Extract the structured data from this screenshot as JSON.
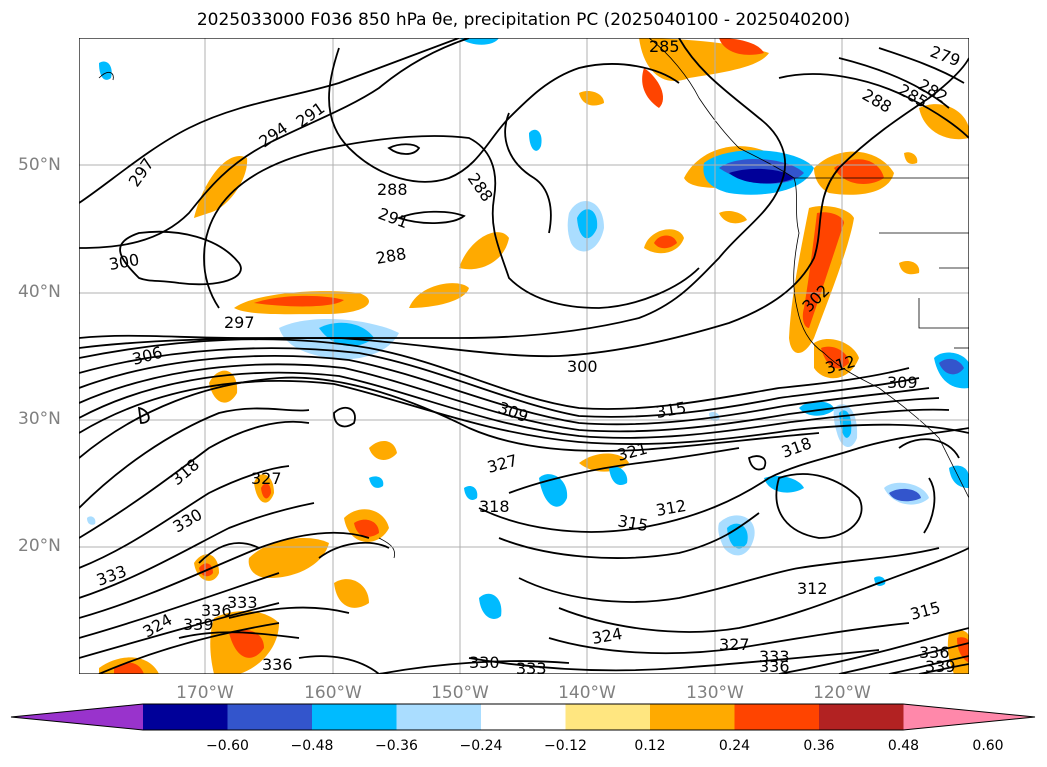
{
  "title": "2025033000 F036 850 hPa θe, precipitation PC (2025040100 - 2025040200)",
  "lat_labels": [
    "50°N",
    "40°N",
    "30°N",
    "20°N"
  ],
  "lon_labels": [
    "170°W",
    "160°W",
    "150°W",
    "140°W",
    "130°W",
    "120°W"
  ],
  "colorbar": {
    "ticks": [
      "−0.60",
      "−0.48",
      "−0.36",
      "−0.24",
      "−0.12",
      "0.12",
      "0.24",
      "0.36",
      "0.48",
      "0.60"
    ],
    "colors": [
      "#9933cc",
      "#000099",
      "#3355cc",
      "#00bbff",
      "#aaddff",
      "#ffffff",
      "#ffe680",
      "#ffaa00",
      "#ff4400",
      "#b22222",
      "#ff88aa"
    ]
  },
  "contour_labels": [
    "285",
    "282",
    "279",
    "288",
    "285",
    "294",
    "291",
    "297",
    "288",
    "288",
    "291",
    "288",
    "300",
    "297",
    "306",
    "300",
    "302",
    "309",
    "315",
    "312",
    "309",
    "318",
    "327",
    "321",
    "327",
    "318",
    "318",
    "330",
    "315",
    "312",
    "333",
    "312",
    "336",
    "333",
    "324",
    "339",
    "324",
    "315",
    "327",
    "336",
    "330",
    "333",
    "333",
    "336",
    "339",
    "336"
  ],
  "colors": {
    "contour": "#000000",
    "grid": "#b0b0b0",
    "axis_label": "#808080"
  }
}
